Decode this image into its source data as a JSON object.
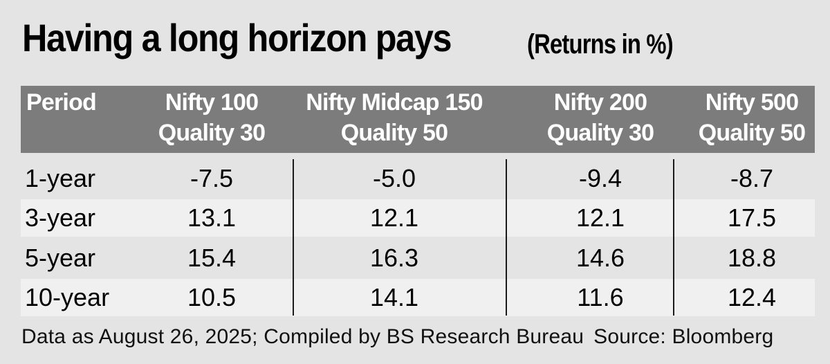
{
  "chart_data": {
    "type": "table",
    "title": "Having a long horizon pays",
    "subtitle": "(Returns in %)",
    "columns": [
      {
        "line1": "Period",
        "line2": ""
      },
      {
        "line1": "Nifty 100",
        "line2": "Quality 30"
      },
      {
        "line1": "Nifty Midcap 150",
        "line2": "Quality 50"
      },
      {
        "line1": "Nifty 200",
        "line2": "Quality 30"
      },
      {
        "line1": "Nifty 500",
        "line2": "Quality 50"
      }
    ],
    "rows": [
      {
        "period": "1-year",
        "values": [
          "-7.5",
          "-5.0",
          "-9.4",
          "-8.7"
        ]
      },
      {
        "period": "3-year",
        "values": [
          "13.1",
          "12.1",
          "12.1",
          "17.5"
        ]
      },
      {
        "period": "5-year",
        "values": [
          "15.4",
          "16.3",
          "14.6",
          "18.8"
        ]
      },
      {
        "period": "10-year",
        "values": [
          "10.5",
          "14.1",
          "11.6",
          "12.4"
        ]
      }
    ],
    "footnote": "Data as August 26, 2025; Compiled by BS Research Bureau",
    "source": "Source: Bloomberg"
  },
  "colors": {
    "background": "#e4e4e4",
    "header_band": "#7c7c7c",
    "header_text": "#ffffff",
    "row_alt": "#f0f0f0",
    "divider": "#1a1a1a"
  }
}
